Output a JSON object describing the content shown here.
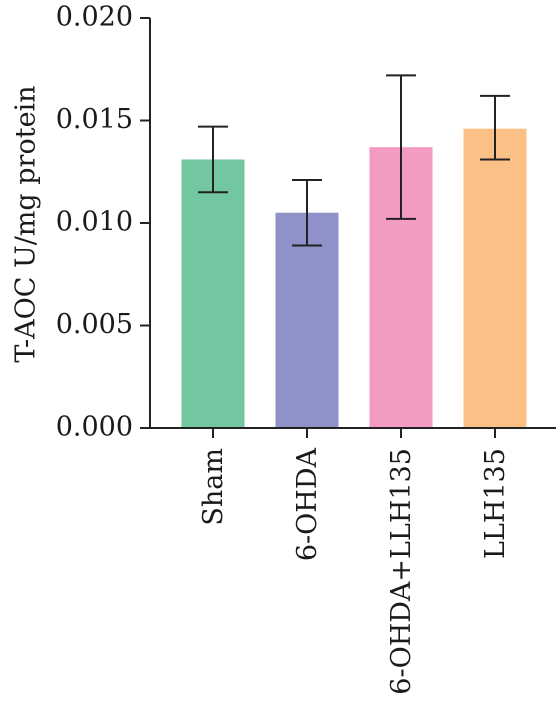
{
  "chart_data": {
    "type": "bar",
    "title": "",
    "xlabel": "",
    "ylabel": "T-AOC U/mg protein",
    "ylim": [
      0,
      0.02
    ],
    "yticks": [
      0.0,
      0.005,
      0.01,
      0.015,
      0.02
    ],
    "ytick_labels": [
      "0.000",
      "0.005",
      "0.010",
      "0.015",
      "0.020"
    ],
    "categories": [
      "Sham",
      "6-OHDA",
      "6-OHDA+LLH135",
      "LLH135"
    ],
    "values": [
      0.0131,
      0.0105,
      0.0137,
      0.0146
    ],
    "error_low": [
      0.0115,
      0.0089,
      0.0102,
      0.0131
    ],
    "error_high": [
      0.0147,
      0.0121,
      0.0172,
      0.0162
    ],
    "colors": [
      "#72c6a0",
      "#8e92c8",
      "#f39bc3",
      "#fbc085"
    ],
    "grid": false,
    "legend": "none"
  }
}
